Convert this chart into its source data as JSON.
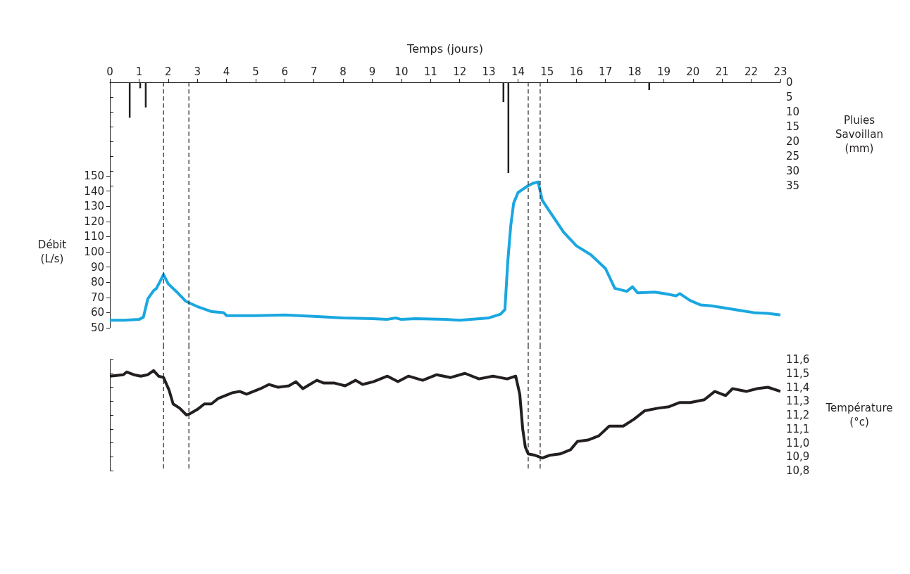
{
  "chart_data": [
    {
      "type": "bar",
      "xlabel": "Temps (jours)",
      "ylabel": "Pluies\nSavoillan\n(mm)",
      "grid": false,
      "xlim": [
        0,
        23
      ],
      "xticks": [
        0,
        1,
        2,
        3,
        4,
        5,
        6,
        7,
        8,
        9,
        10,
        11,
        12,
        13,
        14,
        15,
        16,
        17,
        18,
        19,
        20,
        21,
        22,
        23
      ],
      "ylim": [
        35,
        0
      ],
      "yticks": [
        0,
        5,
        10,
        15,
        20,
        25,
        30,
        35
      ],
      "x": [
        0.68,
        1.04,
        1.23,
        13.5,
        13.67,
        18.5
      ],
      "values": [
        12,
        2,
        8.5,
        6.7,
        30.7,
        2.6
      ],
      "color": "#231f20",
      "ref_lines": [
        {
          "axis": "x",
          "value": 1.84,
          "color": "#231f20",
          "line_style": "dashed"
        },
        {
          "axis": "x",
          "value": 2.71,
          "color": "#231f20",
          "line_style": "dashed"
        },
        {
          "axis": "x",
          "value": 14.35,
          "color": "#231f20",
          "line_style": "dashed"
        },
        {
          "axis": "x",
          "value": 14.76,
          "color": "#231f20",
          "line_style": "dashed"
        }
      ]
    },
    {
      "type": "line",
      "ylabel": "Débit\n(L/s)",
      "grid": false,
      "marker": "none",
      "line_style": "solid",
      "tick_labels": "y",
      "xlim": [
        0,
        23
      ],
      "ylim": [
        50,
        150
      ],
      "yticks": [
        50,
        60,
        70,
        80,
        90,
        100,
        110,
        120,
        130,
        140,
        150
      ],
      "color": "#1aa7e0",
      "x": [
        0,
        0.5,
        1.0,
        1.15,
        1.3,
        1.5,
        1.6,
        1.84,
        2.0,
        2.3,
        2.6,
        3.0,
        3.5,
        3.9,
        4.0,
        5,
        6,
        7,
        8,
        9,
        9.5,
        9.8,
        10,
        10.5,
        11.5,
        12,
        13,
        13.4,
        13.55,
        13.65,
        13.75,
        13.85,
        14.0,
        14.3,
        14.5,
        14.69,
        14.83,
        15.07,
        15.56,
        16.0,
        16.5,
        17.0,
        17.32,
        17.73,
        17.93,
        18.1,
        18.7,
        19.18,
        19.42,
        19.55,
        19.9,
        20.27,
        20.63,
        21.12,
        21.6,
        22.08,
        22.57,
        23
      ],
      "values": [
        55,
        55,
        55.5,
        57,
        69,
        74.5,
        76,
        85,
        79,
        73.5,
        67.5,
        64,
        60.6,
        60,
        58,
        58,
        58.5,
        57.5,
        56.5,
        56,
        55.5,
        56.5,
        55.5,
        56,
        55.5,
        55,
        56.5,
        59,
        62,
        94,
        117,
        132,
        139,
        143,
        145,
        146,
        134,
        127,
        113,
        104,
        98,
        89,
        76,
        74,
        77,
        73,
        73.5,
        72,
        71,
        72.5,
        68,
        65,
        64.5,
        63,
        61.5,
        60,
        59.5,
        58.5
      ],
      "ref_lines": [
        {
          "axis": "x",
          "value": 1.84,
          "color": "#231f20",
          "line_style": "dashed"
        },
        {
          "axis": "x",
          "value": 2.71,
          "color": "#231f20",
          "line_style": "dashed"
        },
        {
          "axis": "x",
          "value": 14.35,
          "color": "#231f20",
          "line_style": "dashed"
        },
        {
          "axis": "x",
          "value": 14.76,
          "color": "#231f20",
          "line_style": "dashed"
        }
      ]
    },
    {
      "type": "line",
      "ylabel": "Température\n(°c)",
      "grid": false,
      "marker": "none",
      "line_style": "solid",
      "tick_labels": "y",
      "xlim": [
        0,
        23
      ],
      "ylim": [
        10.8,
        11.6
      ],
      "yticks": [
        {
          "value": 10.8,
          "label": "10,8"
        },
        {
          "value": 10.9,
          "label": "10,9"
        },
        {
          "value": 11.0,
          "label": "11,0"
        },
        {
          "value": 11.1,
          "label": "11,1"
        },
        {
          "value": 11.2,
          "label": "11,2"
        },
        {
          "value": 11.3,
          "label": "11,3"
        },
        {
          "value": 11.4,
          "label": "11,4"
        },
        {
          "value": 11.5,
          "label": "11,5"
        },
        {
          "value": 11.6,
          "label": "11,6"
        }
      ],
      "color": "#231f20",
      "x": [
        0,
        0.46,
        0.58,
        0.82,
        1.06,
        1.3,
        1.5,
        1.67,
        1.84,
        2.03,
        2.17,
        2.39,
        2.63,
        2.75,
        3.0,
        3.24,
        3.48,
        3.72,
        3.96,
        4.2,
        4.45,
        4.69,
        4.93,
        5.17,
        5.46,
        5.77,
        6.14,
        6.38,
        6.62,
        6.86,
        7.1,
        7.34,
        7.71,
        8.07,
        8.43,
        8.67,
        9.04,
        9.52,
        9.88,
        10.24,
        10.73,
        11.21,
        11.69,
        12.18,
        12.66,
        13.14,
        13.63,
        13.92,
        14.06,
        14.16,
        14.25,
        14.35,
        14.59,
        14.83,
        15.08,
        15.44,
        15.8,
        16.04,
        16.4,
        16.77,
        17.13,
        17.61,
        17.98,
        18.34,
        18.82,
        19.18,
        19.55,
        19.91,
        20.39,
        20.75,
        21.12,
        21.36,
        21.84,
        22.2,
        22.57,
        23
      ],
      "values": [
        11.48,
        11.49,
        11.51,
        11.49,
        11.48,
        11.49,
        11.52,
        11.48,
        11.47,
        11.38,
        11.28,
        11.25,
        11.2,
        11.21,
        11.24,
        11.28,
        11.28,
        11.32,
        11.34,
        11.36,
        11.37,
        11.35,
        11.37,
        11.39,
        11.42,
        11.4,
        11.41,
        11.44,
        11.39,
        11.42,
        11.45,
        11.43,
        11.43,
        11.41,
        11.45,
        11.42,
        11.44,
        11.48,
        11.44,
        11.48,
        11.45,
        11.49,
        11.47,
        11.5,
        11.46,
        11.48,
        11.46,
        11.48,
        11.35,
        11.1,
        10.97,
        10.92,
        10.91,
        10.89,
        10.91,
        10.92,
        10.95,
        11.01,
        11.02,
        11.05,
        11.12,
        11.12,
        11.17,
        11.23,
        11.25,
        11.26,
        11.29,
        11.29,
        11.31,
        11.37,
        11.34,
        11.39,
        11.37,
        11.39,
        11.4,
        11.37
      ],
      "ref_lines": [
        {
          "axis": "x",
          "value": 1.84,
          "color": "#231f20",
          "line_style": "dashed"
        },
        {
          "axis": "x",
          "value": 2.71,
          "color": "#231f20",
          "line_style": "dashed"
        },
        {
          "axis": "x",
          "value": 14.35,
          "color": "#231f20",
          "line_style": "dashed"
        },
        {
          "axis": "x",
          "value": 14.76,
          "color": "#231f20",
          "line_style": "dashed"
        }
      ]
    }
  ]
}
